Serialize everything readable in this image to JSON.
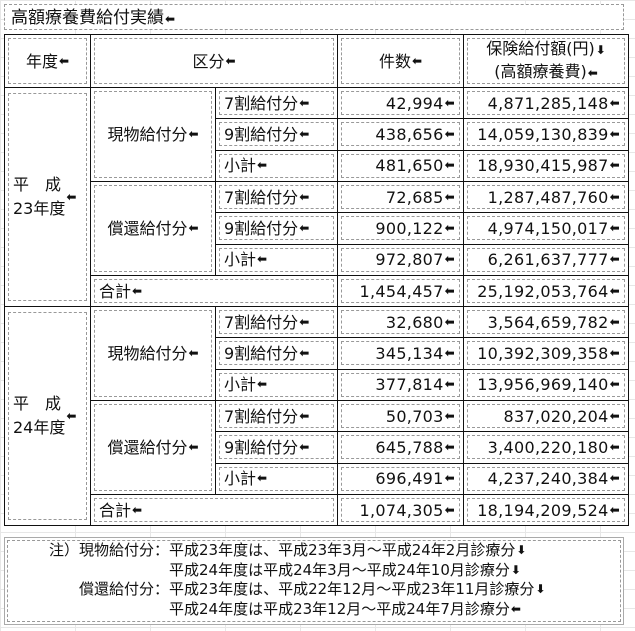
{
  "title": "高額療養費給付実績",
  "headers": {
    "year": "年度",
    "category": "区分",
    "count": "件数",
    "amount_l1": "保険給付額(円)",
    "amount_l2": "(高額療養費)"
  },
  "groups": [
    {
      "year": "平　成\n23年度",
      "sections": [
        {
          "label": "現物給付分",
          "rows": [
            {
              "sub": "7割給付分",
              "count": "42,994",
              "amount": "4,871,285,148"
            },
            {
              "sub": "9割給付分",
              "count": "438,656",
              "amount": "14,059,130,839"
            },
            {
              "sub": "小計",
              "count": "481,650",
              "amount": "18,930,415,987"
            }
          ]
        },
        {
          "label": "償還給付分",
          "rows": [
            {
              "sub": "7割給付分",
              "count": "72,685",
              "amount": "1,287,487,760"
            },
            {
              "sub": "9割給付分",
              "count": "900,122",
              "amount": "4,974,150,017"
            },
            {
              "sub": "小計",
              "count": "972,807",
              "amount": "6,261,637,777"
            }
          ]
        }
      ],
      "total": {
        "label": "合計",
        "count": "1,454,457",
        "amount": "25,192,053,764"
      }
    },
    {
      "year": "平　成\n24年度",
      "sections": [
        {
          "label": "現物給付分",
          "rows": [
            {
              "sub": "7割給付分",
              "count": "32,680",
              "amount": "3,564,659,782"
            },
            {
              "sub": "9割給付分",
              "count": "345,134",
              "amount": "10,392,309,358"
            },
            {
              "sub": "小計",
              "count": "377,814",
              "amount": "13,956,969,140"
            }
          ]
        },
        {
          "label": "償還給付分",
          "rows": [
            {
              "sub": "7割給付分",
              "count": "50,703",
              "amount": "837,020,204"
            },
            {
              "sub": "9割給付分",
              "count": "645,788",
              "amount": "3,400,220,180"
            },
            {
              "sub": "小計",
              "count": "696,491",
              "amount": "4,237,240,384"
            }
          ]
        }
      ],
      "total": {
        "label": "合計",
        "count": "1,074,305",
        "amount": "18,194,209,524"
      }
    }
  ],
  "notes": [
    {
      "label": "注）現物給付分：",
      "text": "平成23年度は、平成23年3月～平成24年2月診療分"
    },
    {
      "label": "",
      "text": "平成24年度は平成24年3月～平成24年10月診療分"
    },
    {
      "label": "償還給付分：",
      "text": "平成23年度は、平成22年12月～平成23年11月診療分"
    },
    {
      "label": "",
      "text": "平成24年度は平成23年12月～平成24年7月診療分"
    }
  ]
}
